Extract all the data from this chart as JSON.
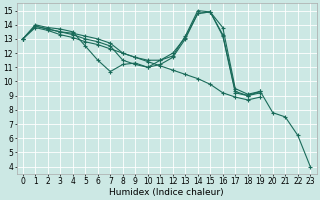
{
  "background_color": "#cce8e4",
  "grid_color": "#ffffff",
  "line_color": "#1a6b5a",
  "line_width": 0.8,
  "marker": "+",
  "marker_size": 3,
  "marker_edge_width": 0.8,
  "xlabel": "Humidex (Indice chaleur)",
  "xlabel_fontsize": 6.5,
  "tick_fontsize": 5.5,
  "xlim": [
    -0.5,
    23.5
  ],
  "ylim": [
    3.5,
    15.5
  ],
  "xticks": [
    0,
    1,
    2,
    3,
    4,
    5,
    6,
    7,
    8,
    9,
    10,
    11,
    12,
    13,
    14,
    15,
    16,
    17,
    18,
    19,
    20,
    21,
    22,
    23
  ],
  "yticks": [
    4,
    5,
    6,
    7,
    8,
    9,
    10,
    11,
    12,
    13,
    14,
    15
  ],
  "line1_x": [
    0,
    1,
    2,
    3,
    4,
    5,
    6,
    7,
    8,
    9,
    10,
    11,
    12,
    13,
    14,
    15,
    16,
    17,
    18,
    19,
    20,
    21,
    22,
    23
  ],
  "line1_y": [
    13,
    14,
    13.8,
    13.7,
    13.5,
    12.5,
    11.5,
    10.7,
    11.2,
    11.3,
    11.0,
    11.5,
    11.8,
    13.2,
    15.0,
    14.9,
    13.8,
    9.5,
    9.1,
    9.3,
    7.8,
    7.5,
    6.2,
    4.0
  ],
  "line2_x": [
    0,
    1,
    2,
    3,
    4,
    5,
    6,
    7,
    8,
    9,
    10,
    11,
    12,
    13,
    14,
    15,
    16,
    17,
    18,
    19
  ],
  "line2_y": [
    13,
    13.9,
    13.7,
    13.5,
    13.3,
    13.0,
    12.8,
    12.5,
    11.5,
    11.2,
    11.0,
    11.2,
    11.7,
    13.0,
    14.8,
    14.9,
    13.2,
    9.2,
    9.0,
    9.2
  ],
  "line3_x": [
    0,
    1,
    2,
    3,
    4,
    5,
    6,
    7,
    8,
    9,
    10,
    11,
    12,
    13,
    14,
    15,
    16,
    17,
    18,
    19
  ],
  "line3_y": [
    13,
    13.9,
    13.7,
    13.5,
    13.4,
    13.2,
    13.0,
    12.7,
    12.0,
    11.7,
    11.5,
    11.5,
    12.0,
    13.1,
    14.8,
    14.9,
    13.3,
    9.3,
    9.0,
    9.3
  ],
  "line4_x": [
    0,
    1,
    2,
    3,
    4,
    5,
    6,
    7,
    8,
    9,
    10,
    11,
    12,
    13,
    14,
    15,
    16,
    17,
    18,
    19
  ],
  "line4_y": [
    13,
    13.8,
    13.6,
    13.3,
    13.1,
    12.8,
    12.6,
    12.3,
    12.0,
    11.7,
    11.4,
    11.1,
    10.8,
    10.5,
    10.2,
    9.8,
    9.2,
    8.9,
    8.7,
    8.9
  ]
}
